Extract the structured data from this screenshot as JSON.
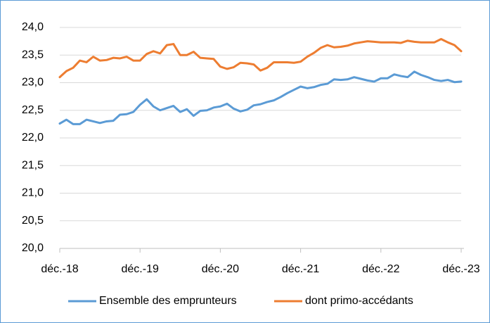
{
  "chart_data": {
    "type": "line",
    "categories": [
      "déc.-18",
      null,
      null,
      null,
      null,
      null,
      null,
      null,
      null,
      null,
      null,
      null,
      "déc.-19",
      null,
      null,
      null,
      null,
      null,
      null,
      null,
      null,
      null,
      null,
      null,
      "déc.-20",
      null,
      null,
      null,
      null,
      null,
      null,
      null,
      null,
      null,
      null,
      null,
      "déc.-21",
      null,
      null,
      null,
      null,
      null,
      null,
      null,
      null,
      null,
      null,
      null,
      "déc.-22",
      null,
      null,
      null,
      null,
      null,
      null,
      null,
      null,
      null,
      null,
      null,
      "déc.-23"
    ],
    "series": [
      {
        "name": "Ensemble des emprunteurs",
        "color": "#5b9bd5",
        "values": [
          22.26,
          22.33,
          22.25,
          22.25,
          22.33,
          22.3,
          22.27,
          22.3,
          22.31,
          22.42,
          22.43,
          22.47,
          22.6,
          22.7,
          22.57,
          22.5,
          22.54,
          22.58,
          22.47,
          22.52,
          22.4,
          22.49,
          22.5,
          22.55,
          22.57,
          22.62,
          22.53,
          22.48,
          22.51,
          22.59,
          22.61,
          22.65,
          22.68,
          22.74,
          22.81,
          22.87,
          22.93,
          22.9,
          22.92,
          22.96,
          22.98,
          23.06,
          23.05,
          23.06,
          23.1,
          23.07,
          23.04,
          23.02,
          23.08,
          23.08,
          23.15,
          23.12,
          23.1,
          23.2,
          23.14,
          23.1,
          23.05,
          23.03,
          23.05,
          23.01,
          23.02
        ]
      },
      {
        "name": "dont primo-accédants",
        "color": "#ed7d31",
        "values": [
          23.1,
          23.21,
          23.27,
          23.4,
          23.37,
          23.47,
          23.4,
          23.41,
          23.45,
          23.44,
          23.47,
          23.4,
          23.4,
          23.52,
          23.57,
          23.53,
          23.68,
          23.7,
          23.5,
          23.5,
          23.56,
          23.45,
          23.44,
          23.43,
          23.29,
          23.25,
          23.28,
          23.36,
          23.35,
          23.33,
          23.22,
          23.27,
          23.37,
          23.37,
          23.37,
          23.36,
          23.38,
          23.47,
          23.54,
          23.63,
          23.68,
          23.64,
          23.65,
          23.67,
          23.71,
          23.73,
          23.75,
          23.74,
          23.73,
          23.73,
          23.73,
          23.72,
          23.76,
          23.74,
          23.73,
          23.73,
          23.73,
          23.79,
          23.73,
          23.68,
          23.57
        ]
      }
    ],
    "ylim": [
      20,
      24
    ],
    "yticks": [
      {
        "value": 20,
        "label": "20,0"
      },
      {
        "value": 20.5,
        "label": "20,5"
      },
      {
        "value": 21,
        "label": "21,0"
      },
      {
        "value": 21.5,
        "label": "21,5"
      },
      {
        "value": 22,
        "label": "22,0"
      },
      {
        "value": 22.5,
        "label": "22,5"
      },
      {
        "value": 23,
        "label": "23,0"
      },
      {
        "value": 23.5,
        "label": "23,5"
      },
      {
        "value": 24,
        "label": "24,0"
      }
    ],
    "grid": true,
    "legend": "bottom"
  }
}
